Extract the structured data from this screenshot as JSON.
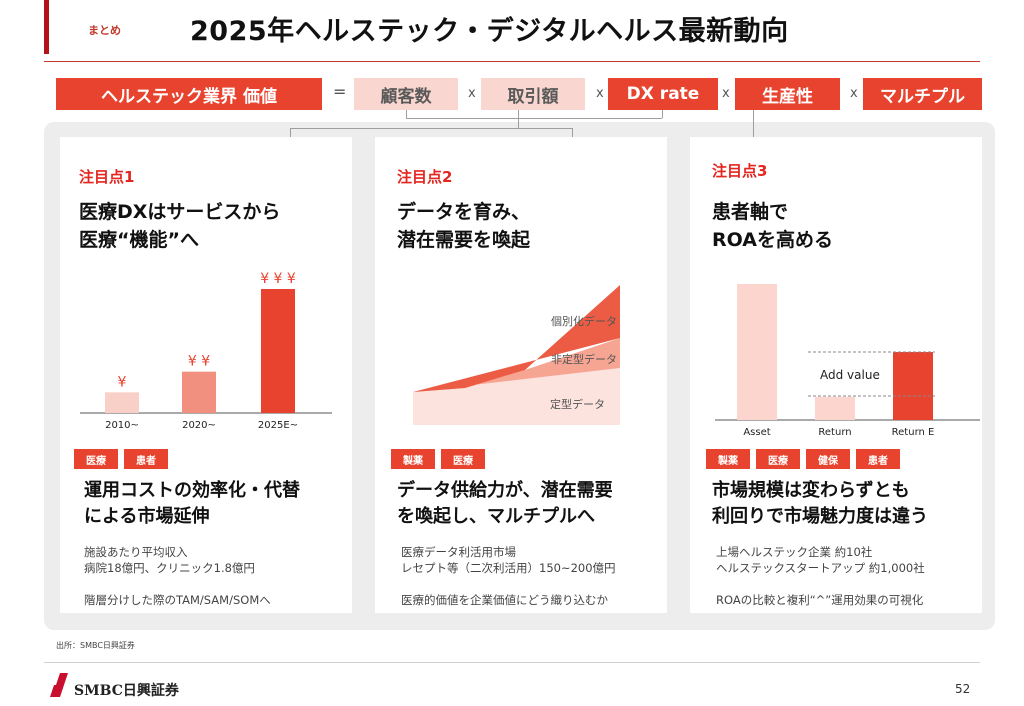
{
  "header": {
    "tag": "まとめ",
    "title": "2025年ヘルステック・デジタルヘルス最新動向"
  },
  "equation": {
    "lhs": "ヘルステック業界 価値",
    "eq": "=",
    "times": "x",
    "terms": [
      "顧客数",
      "取引額",
      "DX rate",
      "生産性",
      "マルチプル"
    ]
  },
  "cards": [
    {
      "kicker": "注目点1",
      "headline": [
        "医療DXはサービスから",
        "医療“機能”へ"
      ],
      "badges": [
        "医療",
        "患者"
      ],
      "sub": [
        "運用コストの効率化・代替",
        "による市場延伸"
      ],
      "body": [
        "施設あたり平均収入",
        "病院18億円、クリニック1.8億円",
        "階層分けした際のTAM/SAM/SOMへ"
      ]
    },
    {
      "kicker": "注目点2",
      "headline": [
        "データを育み、",
        "潜在需要を喚起"
      ],
      "badges": [
        "製薬",
        "医療"
      ],
      "sub": [
        "データ供給力が、潜在需要",
        "を喚起し、マルチプルへ"
      ],
      "body": [
        "医療データ利活用市場",
        "レセプト等（二次利活用）150~200億円",
        "医療的価値を企業価値にどう織り込むか"
      ]
    },
    {
      "kicker": "注目点3",
      "headline": [
        "患者軸で",
        "ROAを高める"
      ],
      "badges": [
        "製薬",
        "医療",
        "健保",
        "患者"
      ],
      "sub": [
        "市場規模は変わらずとも",
        "利回りで市場魅力度は違う"
      ],
      "body": [
        "上場ヘルステック企業 約10社",
        "ヘルステックスタートアップ 約1,000社",
        "ROAの比較と複利“^”運用効果の可視化"
      ]
    }
  ],
  "chart_data": [
    {
      "type": "bar",
      "categories": [
        "2010~",
        "2020~",
        "2025E~"
      ],
      "values": [
        1,
        2,
        6
      ],
      "annotations": [
        "¥",
        "¥ ¥",
        "¥ ¥ ¥"
      ],
      "colors": [
        "#f9d0c8",
        "#f2907f",
        "#e8432f"
      ]
    },
    {
      "type": "area",
      "series": [
        {
          "name": "定型データ"
        },
        {
          "name": "非定型データ"
        },
        {
          "name": "個別化データ"
        }
      ],
      "colors": [
        "#fce3de",
        "#f6a593",
        "#ec5c45"
      ]
    },
    {
      "type": "bar",
      "categories": [
        "Asset",
        "Return",
        "Return E"
      ],
      "values": [
        100,
        17,
        50
      ],
      "annotations": [
        "Add value"
      ],
      "colors": [
        "#fbd5ce",
        "#fbd5ce",
        "#e8432f"
      ]
    }
  ],
  "footer": {
    "source": "出所：SMBC日興証券",
    "logo": "SMBC日興証券",
    "page": "52"
  }
}
